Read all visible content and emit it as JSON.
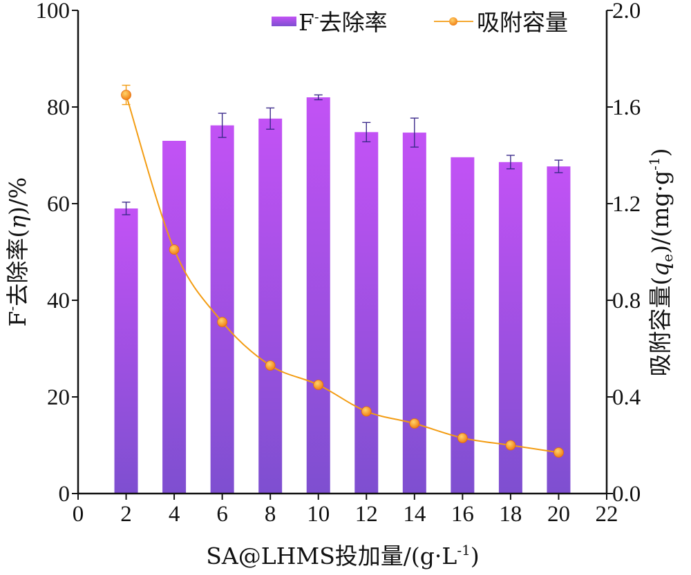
{
  "chart_data": {
    "type": "bar+line",
    "x": [
      2,
      4,
      6,
      8,
      10,
      12,
      14,
      16,
      18,
      20
    ],
    "xlabel": "SA@LHMS投加量/(g·L⁻¹)",
    "xlim": [
      0,
      22
    ],
    "x_ticks": [
      0,
      2,
      4,
      6,
      8,
      10,
      12,
      14,
      16,
      18,
      20,
      22
    ],
    "series": [
      {
        "name": "F⁻去除率",
        "type": "bar",
        "axis": "left",
        "values": [
          59.0,
          73.0,
          76.2,
          77.6,
          82.0,
          74.8,
          74.7,
          69.6,
          68.6,
          67.7
        ],
        "errors": [
          1.3,
          0.0,
          2.5,
          2.2,
          0.5,
          2.0,
          3.0,
          0.0,
          1.4,
          1.3
        ],
        "color_top": "#c252f5",
        "color_bottom": "#7e4fd0"
      },
      {
        "name": "吸附容量",
        "type": "line",
        "axis": "right",
        "values": [
          1.65,
          1.01,
          0.71,
          0.53,
          0.45,
          0.34,
          0.29,
          0.23,
          0.2,
          0.17
        ],
        "errors": [
          0.04,
          0.0,
          0.0,
          0.0,
          0.0,
          0.0,
          0.0,
          0.0,
          0.0,
          0.0
        ],
        "color": "#f39c12"
      }
    ],
    "left_axis": {
      "label": "F⁻去除率(η)/%",
      "ylim": [
        0,
        100
      ],
      "ticks": [
        "0",
        "20",
        "40",
        "60",
        "80",
        "100"
      ]
    },
    "right_axis": {
      "label": "吸附容量(qe)/(mg·g⁻¹)",
      "ylim": [
        0,
        2.0
      ],
      "ticks": [
        "0.0",
        "0.4",
        "0.8",
        "1.2",
        "1.6",
        "2.0"
      ]
    },
    "legend": {
      "placement": "top-right",
      "bar_label_main": "F",
      "bar_label_sup": "-",
      "bar_label_rest": "去除率",
      "line_label": "吸附容量"
    },
    "grid": false
  },
  "axis_titles": {
    "x_main": "SA@LHMS投加量/(g·L",
    "x_sup": "-1",
    "x_end": ")",
    "left_main": "F",
    "left_sup": "-",
    "left_rest": "去除率(",
    "left_italic": "η",
    "left_end": ")/%",
    "right_main": "吸附容量(",
    "right_italic": "q",
    "right_sub": "e",
    "right_mid": ")/(mg·g",
    "right_sup": "-1",
    "right_end": ")"
  }
}
